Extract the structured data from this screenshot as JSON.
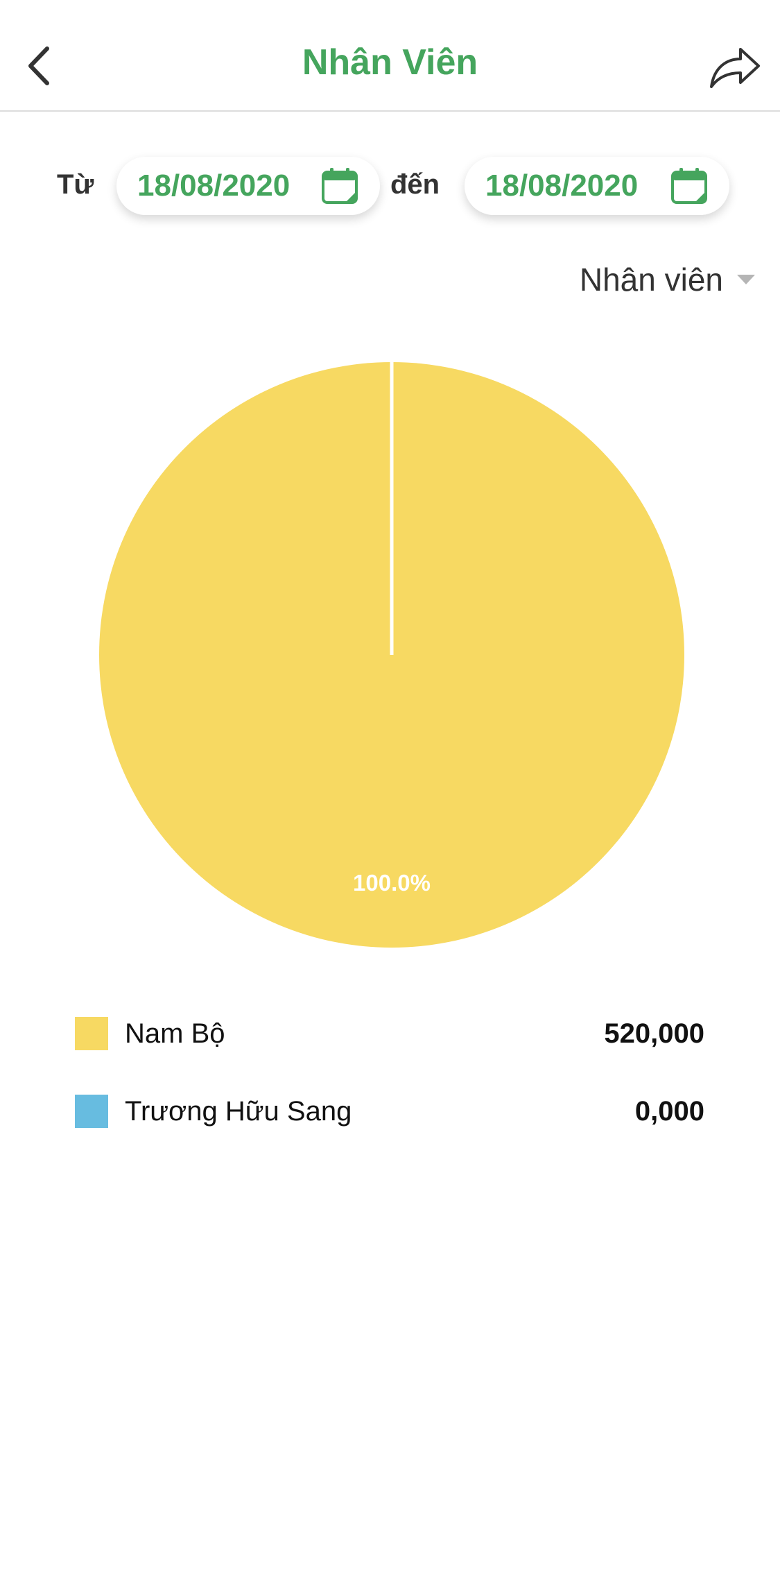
{
  "header": {
    "title": "Nhân Viên",
    "back_icon": "chevron-left-icon",
    "share_icon": "share-arrow-icon"
  },
  "date_range": {
    "from_label": "Từ",
    "from_value": "18/08/2020",
    "to_label": "đến",
    "to_value": "18/08/2020",
    "icon": "calendar-icon"
  },
  "filter": {
    "selected": "Nhân viên",
    "icon": "caret-down-icon"
  },
  "colors": {
    "accent": "#45a55d",
    "slice_yellow": "#f7d962",
    "slice_blue": "#67bce0"
  },
  "chart_data": {
    "type": "pie",
    "categories": [
      "Nam Bộ",
      "Trương Hữu Sang"
    ],
    "values": [
      520000,
      0
    ],
    "display_values": [
      "520,000",
      "0,000"
    ],
    "slice_labels": [
      "100.0%",
      ""
    ],
    "colors": [
      "#f7d962",
      "#67bce0"
    ]
  }
}
